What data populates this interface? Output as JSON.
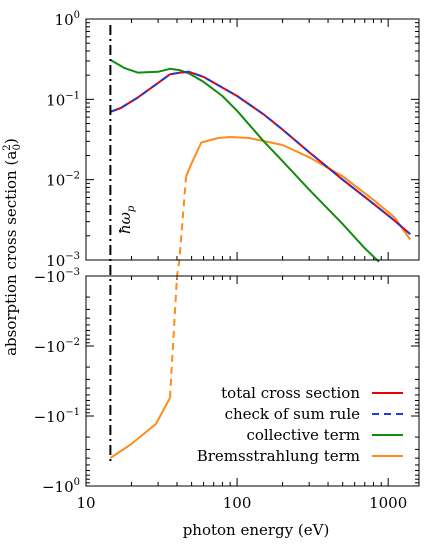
{
  "chart_data": {
    "type": "line",
    "title": "",
    "xlabel": "photon energy (eV)",
    "ylabel": "absorption cross section",
    "ylabel_unit": "(a",
    "ylabel_unit_sub": "0",
    "ylabel_unit_sup": "2",
    "ylabel_unit_close": ")",
    "x_scale": "log",
    "y_scale": "log",
    "xlim": [
      10,
      1600
    ],
    "xticks": [
      {
        "value": 10,
        "label": "10"
      },
      {
        "value": 100,
        "label": "100"
      },
      {
        "value": 1000,
        "label": "1000"
      }
    ],
    "panels": [
      {
        "name": "upper",
        "sign": 1,
        "ylim": [
          0.001,
          1
        ],
        "yticks": [
          {
            "value": 1,
            "base": "10",
            "exp": "0"
          },
          {
            "value": 0.1,
            "base": "10",
            "exp": "−1"
          },
          {
            "value": 0.01,
            "base": "10",
            "exp": "−2"
          },
          {
            "value": 0.001,
            "base": "10",
            "exp": "−3"
          }
        ]
      },
      {
        "name": "lower",
        "sign": -1,
        "ylim": [
          -0.001,
          -1
        ],
        "yticks": [
          {
            "value": -0.001,
            "base": "−10",
            "exp": "−3"
          },
          {
            "value": -0.01,
            "base": "−10",
            "exp": "−2"
          },
          {
            "value": -0.1,
            "base": "−10",
            "exp": "−1"
          },
          {
            "value": -1,
            "base": "−10",
            "exp": "0"
          }
        ]
      }
    ],
    "plasmon": {
      "x": 14.5,
      "label": "ħω",
      "label_sub": "p"
    },
    "legend_position": "bottom-right",
    "series": [
      {
        "name": "total cross section",
        "color": "#e8000b",
        "dash": "solid",
        "panel": "upper",
        "points": [
          [
            14.5,
            0.07
          ],
          [
            17,
            0.078
          ],
          [
            22,
            0.105
          ],
          [
            30,
            0.16
          ],
          [
            36,
            0.205
          ],
          [
            42,
            0.215
          ],
          [
            48,
            0.22
          ],
          [
            60,
            0.19
          ],
          [
            80,
            0.14
          ],
          [
            100,
            0.11
          ],
          [
            150,
            0.065
          ],
          [
            200,
            0.042
          ],
          [
            300,
            0.022
          ],
          [
            500,
            0.01
          ],
          [
            800,
            0.005
          ],
          [
            1100,
            0.0031
          ],
          [
            1400,
            0.0021
          ]
        ]
      },
      {
        "name": "check of sum rule",
        "color": "#1f3dd6",
        "dash": "dashed",
        "panel": "upper",
        "points": [
          [
            14.5,
            0.07
          ],
          [
            17,
            0.078
          ],
          [
            22,
            0.105
          ],
          [
            30,
            0.16
          ],
          [
            36,
            0.205
          ],
          [
            42,
            0.215
          ],
          [
            48,
            0.22
          ],
          [
            60,
            0.19
          ],
          [
            80,
            0.14
          ],
          [
            100,
            0.11
          ],
          [
            150,
            0.065
          ],
          [
            200,
            0.042
          ],
          [
            300,
            0.022
          ],
          [
            500,
            0.01
          ],
          [
            800,
            0.005
          ],
          [
            1100,
            0.0031
          ],
          [
            1400,
            0.0021
          ]
        ]
      },
      {
        "name": "collective term",
        "color": "#118c11",
        "dash": "solid",
        "panel": "upper",
        "points": [
          [
            14.5,
            0.31
          ],
          [
            18,
            0.245
          ],
          [
            22,
            0.215
          ],
          [
            30,
            0.22
          ],
          [
            36,
            0.24
          ],
          [
            42,
            0.23
          ],
          [
            48,
            0.21
          ],
          [
            60,
            0.165
          ],
          [
            80,
            0.11
          ],
          [
            100,
            0.072
          ],
          [
            150,
            0.03
          ],
          [
            200,
            0.017
          ],
          [
            300,
            0.0075
          ],
          [
            500,
            0.0028
          ],
          [
            700,
            0.0014
          ],
          [
            870,
            0.00095
          ]
        ]
      },
      {
        "name": "Bremsstrahlung term",
        "color": "#ff8c1a",
        "dash": "solid",
        "panel": "both",
        "segments": [
          {
            "dash": "solid",
            "points": [
              [
                14.5,
                -0.4
              ],
              [
                20,
                -0.25
              ],
              [
                29,
                -0.13
              ],
              [
                36,
                -0.055
              ]
            ]
          },
          {
            "dash": "dashed",
            "points": [
              [
                36,
                -0.055
              ],
              [
                40,
                -0.001
              ],
              [
                41.5,
                0.001
              ],
              [
                46,
                0.011
              ]
            ]
          },
          {
            "dash": "solid",
            "points": [
              [
                46,
                0.011
              ],
              [
                50,
                0.016
              ],
              [
                58,
                0.029
              ],
              [
                75,
                0.033
              ],
              [
                90,
                0.034
              ],
              [
                120,
                0.033
              ],
              [
                200,
                0.027
              ],
              [
                300,
                0.019
              ],
              [
                500,
                0.011
              ],
              [
                800,
                0.0056
              ],
              [
                1100,
                0.0034
              ],
              [
                1400,
                0.0018
              ]
            ]
          }
        ]
      }
    ]
  }
}
